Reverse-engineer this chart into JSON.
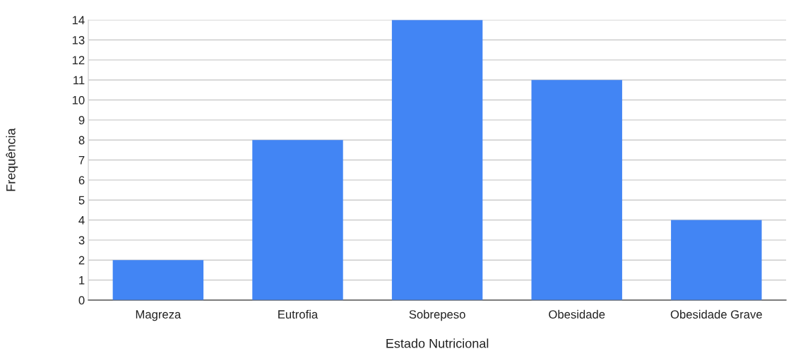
{
  "chart_data": {
    "type": "bar",
    "xlabel": "Estado Nutricional",
    "ylabel": "Frequência",
    "categories": [
      "Magreza",
      "Eutrofia",
      "Sobrepeso",
      "Obesidade",
      "Obesidade Grave"
    ],
    "values": [
      2,
      8,
      14,
      11,
      4
    ],
    "color": "#4285f4",
    "ylim": [
      0,
      14
    ],
    "yticks": [
      0,
      1,
      2,
      3,
      4,
      5,
      6,
      7,
      8,
      9,
      10,
      11,
      12,
      13,
      14
    ],
    "grid": "y"
  }
}
